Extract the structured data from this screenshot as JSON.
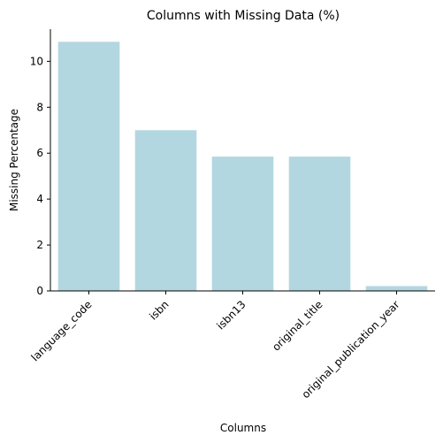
{
  "chart_data": {
    "type": "bar",
    "title": "Columns with Missing Data (%)",
    "xlabel": "Columns",
    "ylabel": "Missing Percentage",
    "categories": [
      "language_code",
      "isbn",
      "isbn13",
      "original_title",
      "original_publication_year"
    ],
    "values": [
      10.85,
      7.0,
      5.85,
      5.85,
      0.21
    ],
    "ylim": [
      0,
      11.4
    ],
    "yticks": [
      0,
      2,
      4,
      6,
      8,
      10
    ],
    "bar_color": "#b3d7e1",
    "grid": false,
    "legend": "none"
  }
}
